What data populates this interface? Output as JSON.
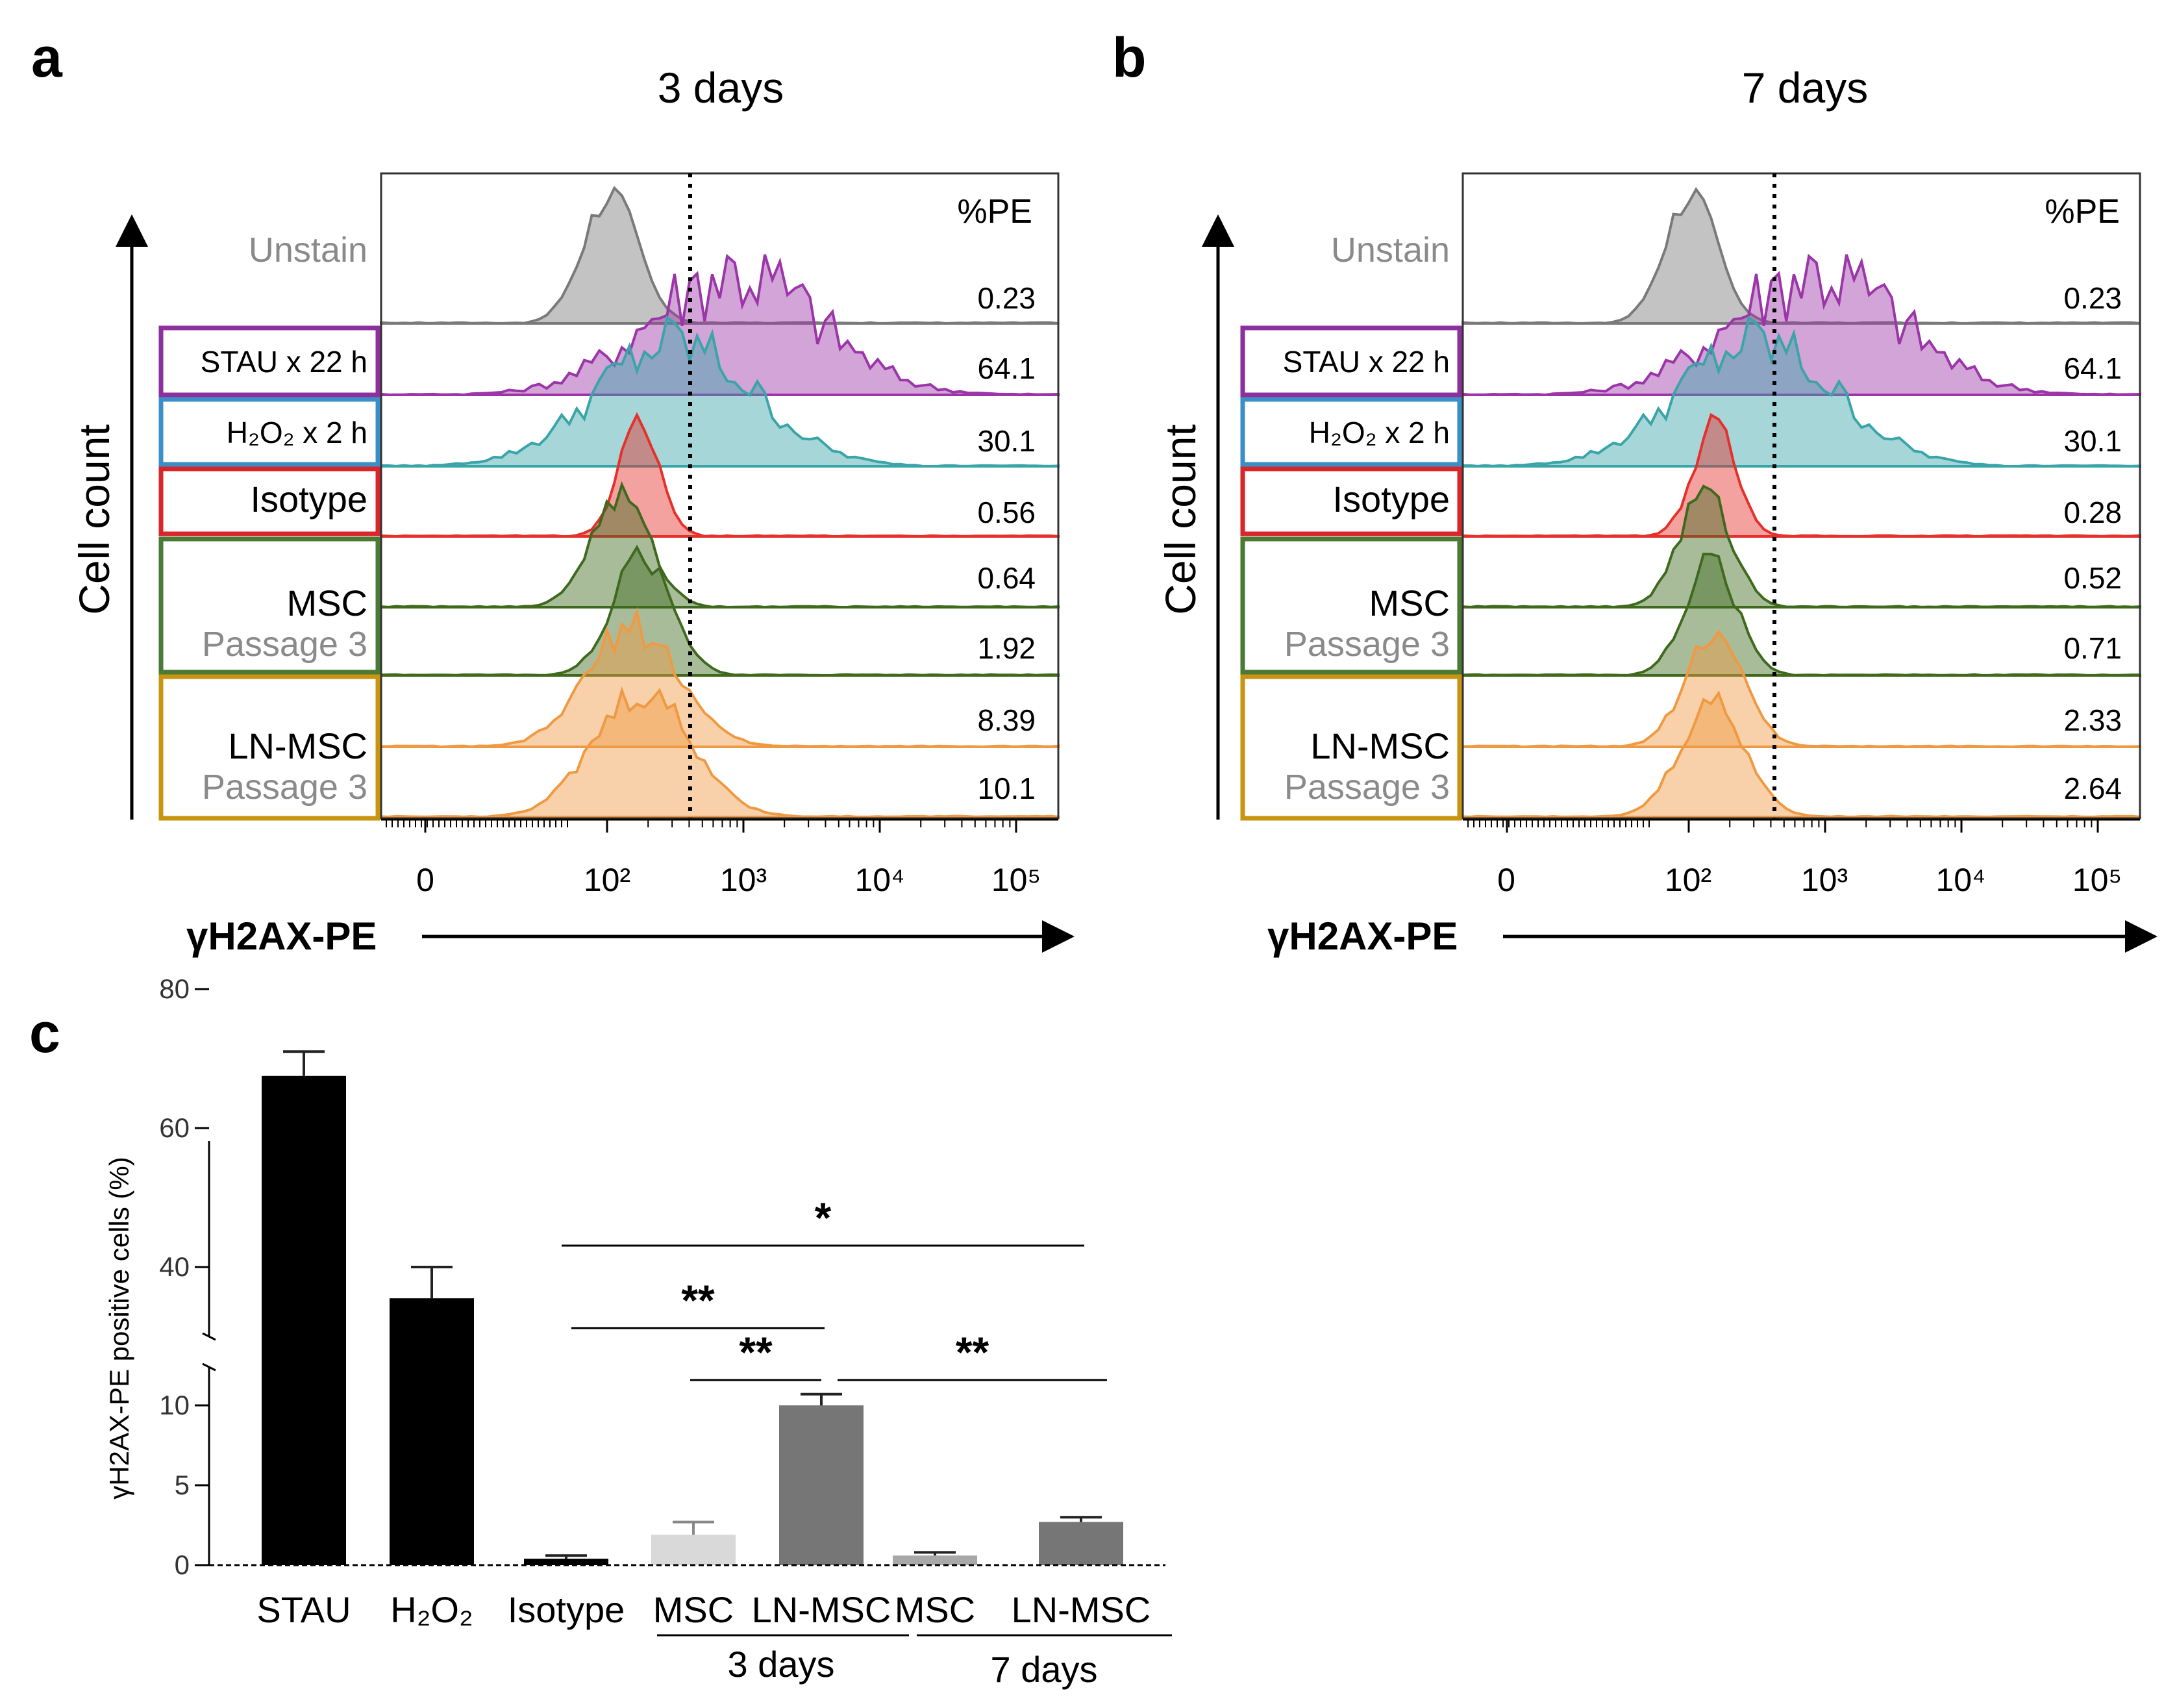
{
  "panels": {
    "a": "a",
    "b": "b",
    "c": "c"
  },
  "colors": {
    "unstain": "#7a7a7a",
    "stau": "#9b35a8",
    "h2o2": "#3aa5a8",
    "isotype": "#e5302b",
    "msc": "#3f6a1e",
    "lnmsc": "#ef9a43",
    "box_stau": "#8e2f9e",
    "box_h2o2": "#3b8fc7",
    "box_isotype": "#d9262b",
    "box_msc": "#4a7a34",
    "box_lnmsc": "#c89411",
    "bar_black": "#000000",
    "bar_light": "#d9d9d9",
    "bar_dark": "#767676",
    "bar_mid": "#a8a8a8",
    "gray_label": "#8a8a8a"
  },
  "histograms": {
    "pe_header": "%PE",
    "x_axis_label": "γH2AX-PE",
    "y_axis_label": "Cell count",
    "row_labels": {
      "unstain": "Unstain",
      "stau": "STAU x 22 h",
      "h2o2": "H₂O₂ x 2 h",
      "isotype": "Isotype",
      "msc": "MSC",
      "lnmsc": "LN-MSC",
      "passage": "Passage 3"
    },
    "x_ticks": [
      "0",
      "10²",
      "10³",
      "10⁴",
      "10⁵"
    ],
    "panel_a": {
      "title": "3 days",
      "values": [
        "0.23",
        "64.1",
        "30.1",
        "0.56",
        "0.64",
        "1.92",
        "8.39",
        "10.1"
      ]
    },
    "panel_b": {
      "title": "7 days",
      "values": [
        "0.23",
        "64.1",
        "30.1",
        "0.28",
        "0.52",
        "0.71",
        "2.33",
        "2.64"
      ]
    }
  },
  "chart_data": {
    "type": "bar",
    "categories": [
      "STAU",
      "H₂O₂",
      "Isotype",
      "MSC",
      "LN-MSC",
      "MSC",
      "LN-MSC"
    ],
    "values": [
      67.5,
      35.5,
      0.4,
      1.9,
      10.0,
      0.6,
      2.7
    ],
    "errors": [
      3.5,
      4.5,
      0.2,
      0.8,
      0.7,
      0.2,
      0.3
    ],
    "bar_colors": [
      "#000000",
      "#000000",
      "#000000",
      "#d9d9d9",
      "#767676",
      "#a8a8a8",
      "#767676"
    ],
    "ylabel": "γH2AX-PE positive cells (%)",
    "ylim": [
      0,
      80
    ],
    "axis_break": [
      12,
      30
    ],
    "y_ticks_lower": [
      0,
      5,
      10
    ],
    "y_ticks_upper": [
      40,
      60,
      80
    ],
    "group_labels": [
      "3 days",
      "7 days"
    ],
    "significance": [
      {
        "from": 2,
        "to": 5,
        "label": "*"
      },
      {
        "from": 2,
        "to": 4,
        "label": "**"
      },
      {
        "from": 3,
        "to": 4,
        "label": "**"
      },
      {
        "from": 4,
        "to": 6,
        "label": "**"
      }
    ]
  }
}
